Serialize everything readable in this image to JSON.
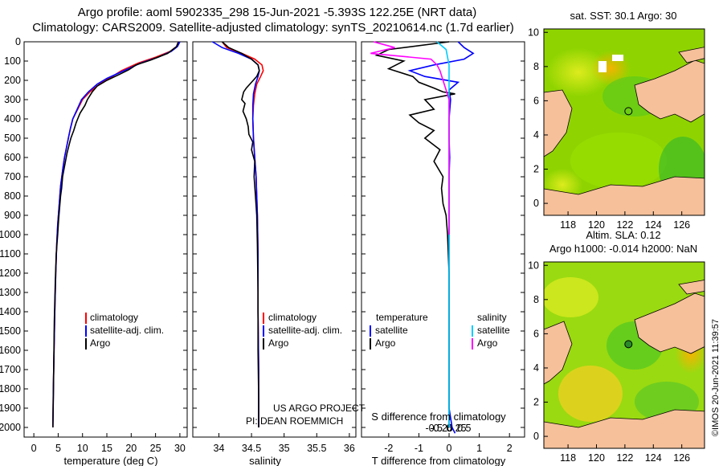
{
  "header": {
    "line1": "Argo profile: aoml 5902335_298 15-Jun-2021 -5.393S 122.25E (NRT data)",
    "line2": "Climatology: CARS2009. Satellite-adjusted climatology: synTS_20210614.nc (1.7d earlier)"
  },
  "colors": {
    "argo": "#000000",
    "climatology": "#ff0000",
    "satellite": "#0000ff",
    "sat_salinity": "#00ccff",
    "argo_salinity_diff": "#ff00ff",
    "land": "#f5c09a",
    "ocean": "#22cc22"
  },
  "chart_data": [
    {
      "type": "line",
      "name": "temperature",
      "xlabel": "temperature (deg C)",
      "xlim": [
        -2,
        31.5
      ],
      "ylim": [
        0,
        2050
      ],
      "xticks": [
        "0",
        "5",
        "10",
        "15",
        "20",
        "25",
        "30"
      ],
      "xtick_values": [
        0,
        5,
        10,
        15,
        20,
        25,
        30
      ],
      "yticks": [
        "0",
        "100",
        "200",
        "300",
        "400",
        "500",
        "600",
        "700",
        "800",
        "900",
        "1000",
        "1100",
        "1200",
        "1300",
        "1400",
        "1500",
        "1600",
        "1700",
        "1800",
        "1900",
        "2000"
      ],
      "ytick_values": [
        0,
        100,
        200,
        300,
        400,
        500,
        600,
        700,
        800,
        900,
        1000,
        1100,
        1200,
        1300,
        1400,
        1500,
        1600,
        1700,
        1800,
        1900,
        2000
      ],
      "legend": [
        "climatology",
        "satellite-adj. clim.",
        "Argo"
      ],
      "series": [
        {
          "name": "climatology",
          "color": "#ff0000",
          "x": [
            29.7,
            29.3,
            28.0,
            25.0,
            21.5,
            18.0,
            15.5,
            13.5,
            11.5,
            10.0,
            9.0,
            8.0,
            7.5,
            7.1,
            6.7,
            6.3,
            6.0,
            5.5,
            5.2,
            4.9,
            4.7,
            4.5,
            4.3,
            4.15,
            4.0,
            3.9
          ],
          "y": [
            0,
            25,
            50,
            80,
            110,
            150,
            190,
            220,
            260,
            300,
            350,
            400,
            450,
            500,
            550,
            600,
            650,
            750,
            850,
            950,
            1050,
            1200,
            1400,
            1600,
            1800,
            2000
          ]
        },
        {
          "name": "satellite-adj. clim.",
          "color": "#0000ff",
          "x": [
            30.0,
            29.5,
            28.2,
            25.5,
            22.0,
            18.5,
            15.0,
            13.0,
            11.2,
            9.8,
            8.9,
            8.0,
            7.5,
            7.1,
            6.7,
            6.3,
            6.0,
            5.5,
            5.2,
            4.9,
            4.7,
            4.5,
            4.3,
            4.15,
            4.0,
            3.9
          ],
          "y": [
            0,
            25,
            50,
            80,
            110,
            150,
            190,
            220,
            260,
            300,
            350,
            400,
            450,
            500,
            550,
            600,
            650,
            750,
            850,
            950,
            1050,
            1200,
            1400,
            1600,
            1800,
            2000
          ]
        },
        {
          "name": "Argo",
          "color": "#000000",
          "x": [
            29.7,
            29.3,
            27.5,
            24.0,
            21.0,
            19.5,
            17.5,
            15.0,
            13.0,
            12.0,
            11.0,
            10.5,
            9.5,
            9.0,
            8.7,
            8.2,
            7.6,
            7.2,
            6.8,
            6.5,
            6.2,
            5.9,
            5.7,
            5.5,
            5.3,
            5.1,
            4.9,
            4.6,
            4.4,
            4.2,
            4.1,
            4.0,
            3.9
          ],
          "y": [
            0,
            25,
            60,
            95,
            120,
            145,
            170,
            200,
            230,
            260,
            300,
            330,
            370,
            400,
            420,
            460,
            500,
            540,
            580,
            620,
            660,
            700,
            760,
            800,
            860,
            920,
            1000,
            1100,
            1250,
            1450,
            1650,
            1850,
            2000
          ]
        }
      ]
    },
    {
      "type": "line",
      "name": "salinity",
      "xlabel": "salinity",
      "xlim": [
        33.6,
        36.1
      ],
      "ylim": [
        0,
        2050
      ],
      "xticks": [
        "34",
        "34.5",
        "35",
        "35.5",
        "36"
      ],
      "xtick_values": [
        34,
        34.5,
        35,
        35.5,
        36
      ],
      "legend": [
        "climatology",
        "satellite-adj. clim.",
        "Argo"
      ],
      "annotation": [
        "US ARGO PROJECT",
        "PI: DEAN ROEMMICH"
      ],
      "series": [
        {
          "name": "climatology",
          "color": "#ff0000",
          "x": [
            34.05,
            34.12,
            34.35,
            34.55,
            34.66,
            34.68,
            34.64,
            34.58,
            34.55,
            34.53,
            34.52,
            34.53,
            34.55,
            34.57,
            34.58,
            34.59,
            34.6,
            34.6,
            34.61,
            34.61
          ],
          "y": [
            0,
            30,
            60,
            90,
            120,
            150,
            180,
            220,
            270,
            330,
            400,
            500,
            600,
            700,
            800,
            900,
            1100,
            1400,
            1700,
            2000
          ]
        },
        {
          "name": "satellite-adj. clim.",
          "color": "#0000ff",
          "x": [
            33.9,
            34.05,
            34.3,
            34.5,
            34.6,
            34.62,
            34.6,
            34.56,
            34.53,
            34.52,
            34.52,
            34.53,
            34.55,
            34.57,
            34.58,
            34.59,
            34.6,
            34.6,
            34.61,
            34.61
          ],
          "y": [
            0,
            30,
            60,
            90,
            120,
            150,
            180,
            220,
            270,
            330,
            400,
            500,
            600,
            700,
            800,
            900,
            1100,
            1400,
            1700,
            2000
          ]
        },
        {
          "name": "Argo",
          "color": "#000000",
          "x": [
            34.05,
            34.15,
            34.35,
            34.5,
            34.6,
            34.62,
            34.58,
            34.5,
            34.42,
            34.38,
            34.35,
            34.4,
            34.37,
            34.42,
            34.45,
            34.46,
            34.52,
            34.5,
            34.55,
            34.54,
            34.56,
            34.58,
            34.59,
            34.6,
            34.6,
            34.61,
            34.61
          ],
          "y": [
            0,
            30,
            60,
            90,
            120,
            150,
            180,
            210,
            240,
            260,
            300,
            320,
            360,
            400,
            440,
            480,
            520,
            560,
            620,
            700,
            800,
            900,
            1050,
            1300,
            1600,
            1850,
            2000
          ]
        }
      ]
    },
    {
      "type": "line",
      "name": "difference",
      "xlabel": "T difference from climatology",
      "sub_xlabel": "S difference from climatology",
      "xlim": [
        -2.9,
        2.5
      ],
      "ylim": [
        0,
        2050
      ],
      "xticks": [
        "-2",
        "-1",
        "0",
        "1",
        "2"
      ],
      "xtick_values": [
        -2,
        -1,
        0,
        1,
        2
      ],
      "s_xticks": [
        "-0.5",
        "-0.25",
        "0",
        "0.25",
        "0.5"
      ],
      "s_xtick_values": [
        -0.5,
        -0.25,
        0,
        0.25,
        0.5
      ],
      "legend_headers": [
        "temperature",
        "salinity"
      ],
      "legend_left": [
        "satellite",
        "Argo"
      ],
      "legend_right": [
        "satellite",
        "Argo"
      ],
      "series": [
        {
          "name": "T satellite",
          "color": "#0000ff",
          "x": [
            0.3,
            0.5,
            0.8,
            0.5,
            -0.5,
            -1.3,
            -0.8,
            0.3,
            0.0,
            0.05,
            0.0,
            0.0,
            0.02,
            0.0,
            0.0,
            0.0,
            0.0,
            0.0,
            0.0,
            0.0,
            0.0,
            0.05,
            0.1,
            0.2
          ],
          "y": [
            0,
            30,
            60,
            90,
            120,
            150,
            180,
            210,
            250,
            300,
            400,
            500,
            600,
            700,
            900,
            1100,
            1300,
            1500,
            1700,
            1800,
            1900,
            1950,
            2000,
            2030
          ]
        },
        {
          "name": "T Argo",
          "color": "#000000",
          "x": [
            0.0,
            -2.0,
            -2.4,
            -1.5,
            -2.0,
            -1.2,
            -1.0,
            -0.5,
            -0.2,
            0.2,
            -0.8,
            -0.5,
            -1.3,
            -1.0,
            -0.5,
            -0.8,
            -0.3,
            -0.5,
            -0.2,
            -0.25,
            -0.2,
            -0.1,
            -0.05,
            0.0,
            0.0,
            0.0,
            0.0
          ],
          "y": [
            0,
            40,
            70,
            100,
            140,
            180,
            210,
            240,
            260,
            270,
            300,
            350,
            380,
            420,
            460,
            500,
            560,
            620,
            700,
            760,
            840,
            900,
            1000,
            1200,
            1400,
            1700,
            2000
          ]
        },
        {
          "name": "S satellite",
          "color": "#00ccff",
          "x": [
            -0.4,
            -0.1,
            -0.05,
            0.0,
            0.0,
            0.0,
            0.0,
            0.0,
            0.0,
            0.0,
            0.0,
            0.0
          ],
          "y": [
            0,
            40,
            80,
            120,
            160,
            200,
            300,
            500,
            900,
            1300,
            1700,
            2000
          ]
        },
        {
          "name": "S Argo",
          "color": "#ff00ff",
          "x": [
            -2.5,
            -1.8,
            -2.6,
            -0.6,
            -0.4,
            -0.3,
            -0.2,
            -0.1,
            0.0,
            0.0,
            0.0,
            0.0
          ],
          "y": [
            0,
            30,
            60,
            90,
            120,
            150,
            200,
            250,
            300,
            500,
            800,
            1000
          ]
        }
      ]
    },
    {
      "type": "heatmap",
      "name": "sst_map",
      "title": "sat. SST: 30.1 Argo: 30",
      "xticks": [
        "118",
        "120",
        "122",
        "124",
        "126"
      ],
      "xtick_values": [
        118,
        120,
        122,
        124,
        126
      ],
      "yticks": [
        "0",
        "2",
        "4",
        "6",
        "8",
        "10"
      ],
      "ytick_values": [
        0,
        2,
        4,
        6,
        8,
        10
      ],
      "xlim": [
        116.3,
        127.6
      ],
      "ylim": [
        -0.7,
        10.2
      ],
      "argo_position": {
        "lon": 122.25,
        "lat": 5.39
      }
    },
    {
      "type": "heatmap",
      "name": "sla_map",
      "title": "Altim. SLA: 0.12",
      "subtitle": "Argo h1000: -0.014 h2000: NaN",
      "xticks": [
        "118",
        "120",
        "122",
        "124",
        "126"
      ],
      "xtick_values": [
        118,
        120,
        122,
        124,
        126
      ],
      "yticks": [
        "0",
        "2",
        "4",
        "6",
        "8",
        "10"
      ],
      "ytick_values": [
        0,
        2,
        4,
        6,
        8,
        10
      ],
      "xlim": [
        116.3,
        127.6
      ],
      "ylim": [
        -0.7,
        10.2
      ],
      "argo_position": {
        "lon": 122.25,
        "lat": 5.39
      }
    }
  ],
  "credit": "©IMOS 20-Jun-2021 11:39:57"
}
